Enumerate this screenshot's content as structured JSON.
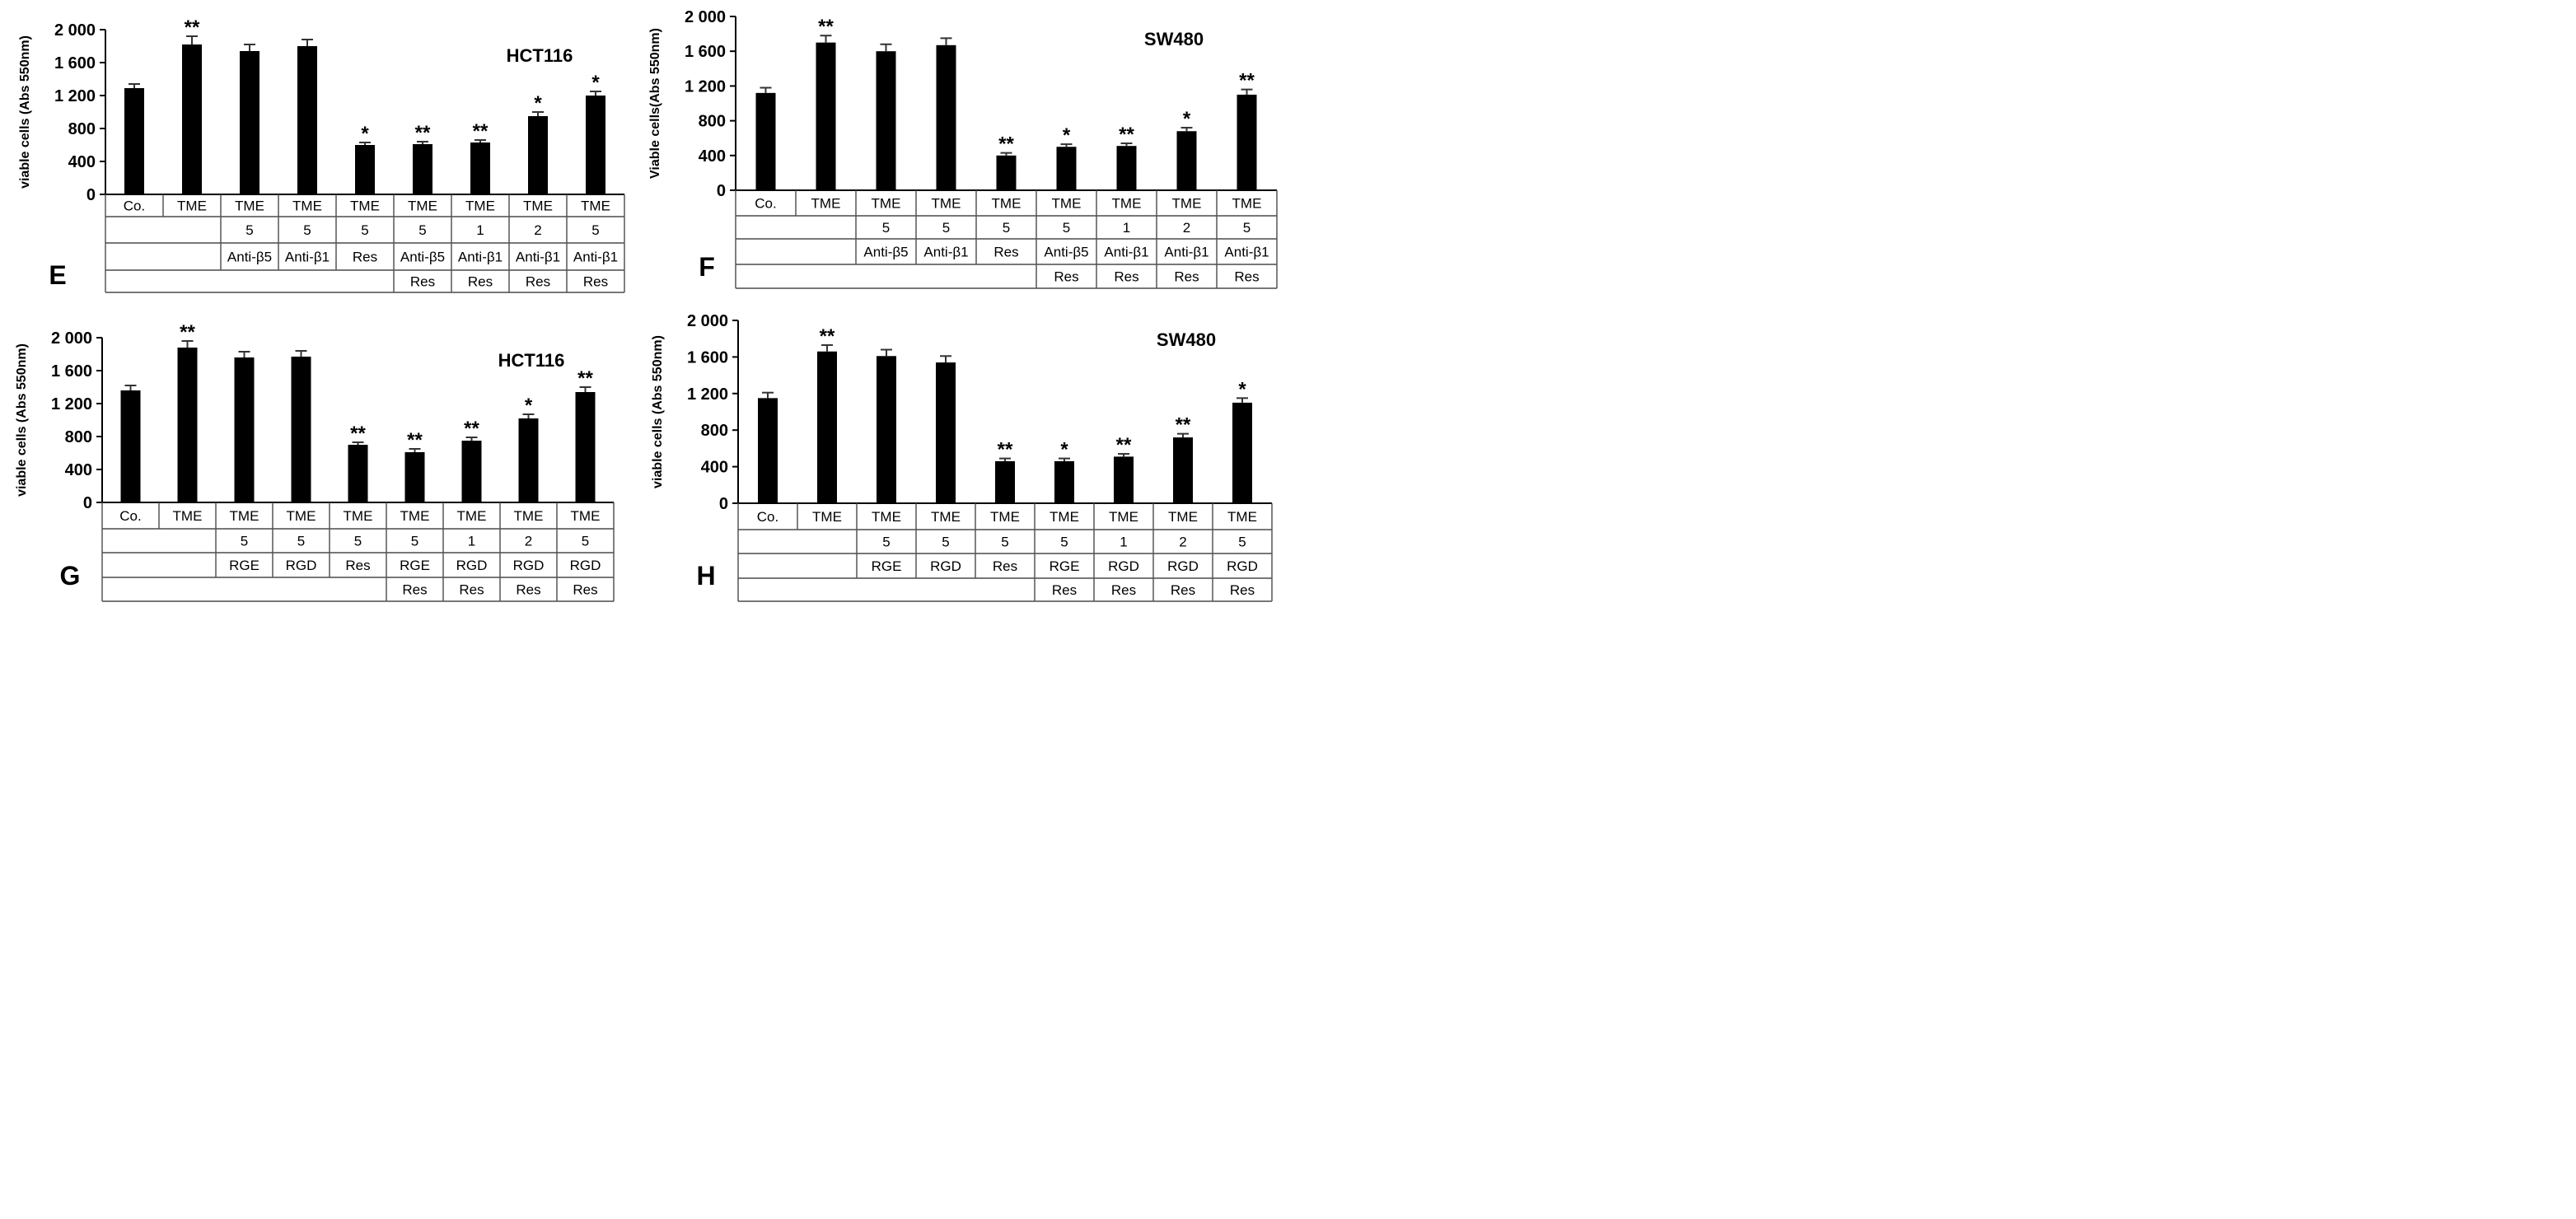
{
  "chart_data": [
    {
      "type": "bar",
      "panel_label": "E",
      "title": "HCT116",
      "ylabel": "viable cells (Abs 550nm)",
      "ylim": [
        0,
        2000
      ],
      "yticks": [
        "0",
        "400",
        "800",
        "1 200",
        "1 600",
        "2 000"
      ],
      "categories": [
        "Co.",
        "TME",
        "TME",
        "TME",
        "TME",
        "TME",
        "TME",
        "TME",
        "TME"
      ],
      "table_rows": [
        [
          "Co.",
          "TME",
          "TME",
          "TME",
          "TME",
          "TME",
          "TME",
          "TME",
          "TME"
        ],
        [
          "",
          "",
          "5",
          "5",
          "5",
          "5",
          "1",
          "2",
          "5"
        ],
        [
          "",
          "",
          "Anti-β5",
          "Anti-β1",
          "Res",
          "Anti-β5",
          "Anti-β1",
          "Anti-β1",
          "Anti-β1"
        ],
        [
          "",
          "",
          "",
          "",
          "",
          "Res",
          "Res",
          "Res",
          "Res"
        ]
      ],
      "values": [
        1290,
        1820,
        1740,
        1800,
        600,
        610,
        630,
        950,
        1200
      ],
      "errors": [
        50,
        100,
        80,
        80,
        30,
        30,
        30,
        50,
        50
      ],
      "significance": [
        "",
        "**",
        "",
        "",
        "*",
        "**",
        "**",
        "*",
        "*"
      ]
    },
    {
      "type": "bar",
      "panel_label": "F",
      "title": "SW480",
      "ylabel": "Viable cells(Abs 550nm)",
      "ylim": [
        0,
        2000
      ],
      "yticks": [
        "0",
        "400",
        "800",
        "1 200",
        "1 600",
        "2 000"
      ],
      "categories": [
        "Co.",
        "TME",
        "TME",
        "TME",
        "TME",
        "TME",
        "TME",
        "TME",
        "TME"
      ],
      "table_rows": [
        [
          "Co.",
          "TME",
          "TME",
          "TME",
          "TME",
          "TME",
          "TME",
          "TME",
          "TME"
        ],
        [
          "",
          "",
          "5",
          "5",
          "5",
          "5",
          "1",
          "2",
          "5"
        ],
        [
          "",
          "",
          "Anti-β5",
          "Anti-β1",
          "Res",
          "Anti-β5",
          "Anti-β1",
          "Anti-β1",
          "Anti-β1"
        ],
        [
          "",
          "",
          "",
          "",
          "",
          "Res",
          "Res",
          "Res",
          "Res"
        ]
      ],
      "values": [
        1120,
        1700,
        1600,
        1670,
        400,
        500,
        510,
        680,
        1100
      ],
      "errors": [
        60,
        80,
        80,
        80,
        30,
        30,
        30,
        40,
        60
      ],
      "significance": [
        "",
        "**",
        "",
        "",
        "**",
        "*",
        "**",
        "*",
        "**"
      ]
    },
    {
      "type": "bar",
      "panel_label": "G",
      "title": "HCT116",
      "ylabel": "viable cells (Abs 550nm)",
      "ylim": [
        0,
        2000
      ],
      "yticks": [
        "0",
        "400",
        "800",
        "1 200",
        "1 600",
        "2 000"
      ],
      "categories": [
        "Co.",
        "TME",
        "TME",
        "TME",
        "TME",
        "TME",
        "TME",
        "TME",
        "TME"
      ],
      "table_rows": [
        [
          "Co.",
          "TME",
          "TME",
          "TME",
          "TME",
          "TME",
          "TME",
          "TME",
          "TME"
        ],
        [
          "",
          "",
          "5",
          "5",
          "5",
          "5",
          "1",
          "2",
          "5"
        ],
        [
          "",
          "",
          "RGE",
          "RGD",
          "Res",
          "RGE",
          "RGD",
          "RGD",
          "RGD"
        ],
        [
          "",
          "",
          "",
          "",
          "",
          "Res",
          "Res",
          "Res",
          "Res"
        ]
      ],
      "values": [
        1360,
        1880,
        1760,
        1770,
        700,
        610,
        750,
        1020,
        1340
      ],
      "errors": [
        60,
        80,
        70,
        70,
        30,
        40,
        40,
        50,
        60
      ],
      "significance": [
        "",
        "**",
        "",
        "",
        "**",
        "**",
        "**",
        "*",
        "**"
      ]
    },
    {
      "type": "bar",
      "panel_label": "H",
      "title": "SW480",
      "ylabel": "viable cells (Abs 550nm)",
      "ylim": [
        0,
        2000
      ],
      "yticks": [
        "0",
        "400",
        "800",
        "1 200",
        "1 600",
        "2 000"
      ],
      "categories": [
        "Co.",
        "TME",
        "TME",
        "TME",
        "TME",
        "TME",
        "TME",
        "TME",
        "TME"
      ],
      "table_rows": [
        [
          "Co.",
          "TME",
          "TME",
          "TME",
          "TME",
          "TME",
          "TME",
          "TME",
          "TME"
        ],
        [
          "",
          "",
          "5",
          "5",
          "5",
          "5",
          "1",
          "2",
          "5"
        ],
        [
          "",
          "",
          "RGE",
          "RGD",
          "Res",
          "RGE",
          "RGD",
          "RGD",
          "RGD"
        ],
        [
          "",
          "",
          "",
          "",
          "",
          "Res",
          "Res",
          "Res",
          "Res"
        ]
      ],
      "values": [
        1150,
        1660,
        1610,
        1540,
        460,
        460,
        510,
        720,
        1100
      ],
      "errors": [
        60,
        70,
        70,
        70,
        30,
        30,
        30,
        40,
        50
      ],
      "significance": [
        "",
        "**",
        "",
        "",
        "**",
        "*",
        "**",
        "**",
        "*"
      ]
    }
  ]
}
